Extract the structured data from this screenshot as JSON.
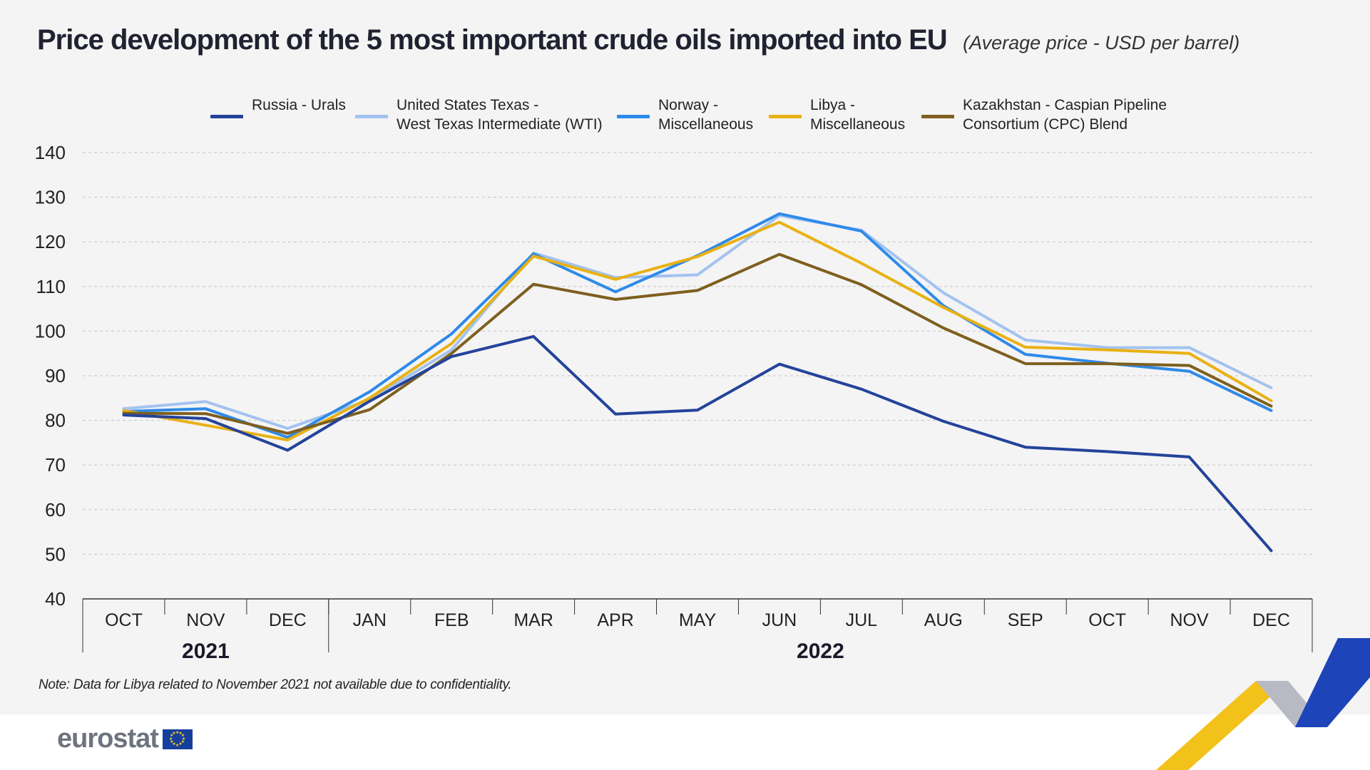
{
  "header": {
    "title": "Price development of the 5 most important crude oils imported into EU",
    "subtitle": "(Average price - USD per barrel)"
  },
  "legend": [
    {
      "label": "Russia - Urals",
      "color": "#24439a"
    },
    {
      "label": "United States Texas -\nWest Texas Intermediate (WTI)",
      "color": "#a3c3ef"
    },
    {
      "label": "Norway -\nMiscellaneous",
      "color": "#2f8ae8"
    },
    {
      "label": "Libya -\nMiscellaneous",
      "color": "#e8b114"
    },
    {
      "label": "Kazakhstan - Caspian Pipeline\nConsortium (CPC) Blend",
      "color": "#7e5f1e"
    }
  ],
  "chart_data": {
    "type": "line",
    "title": "Price development of the 5 most important crude oils imported into EU",
    "subtitle": "(Average price - USD per barrel)",
    "categories": [
      "OCT",
      "NOV",
      "DEC",
      "JAN",
      "FEB",
      "MAR",
      "APR",
      "MAY",
      "JUN",
      "JUL",
      "AUG",
      "SEP",
      "OCT",
      "NOV",
      "DEC"
    ],
    "year_groups": [
      {
        "label": "2021",
        "count": 3
      },
      {
        "label": "2022",
        "count": 12
      }
    ],
    "ylim": [
      40,
      140
    ],
    "yticks": [
      40,
      50,
      60,
      70,
      80,
      90,
      100,
      110,
      120,
      130,
      140
    ],
    "grid": true,
    "legend_position": "top",
    "series": [
      {
        "name": "Russia - Urals",
        "color": "#24439a",
        "values": [
          81.2,
          80.4,
          73.3,
          84.3,
          94.3,
          98.8,
          81.4,
          82.3,
          92.6,
          87.0,
          79.8,
          74.0,
          73.0,
          71.8,
          50.8
        ]
      },
      {
        "name": "United States Texas - West Texas Intermediate (WTI)",
        "color": "#a3c3ef",
        "values": [
          82.6,
          84.2,
          78.2,
          84.6,
          95.8,
          117.5,
          112.0,
          112.6,
          125.9,
          122.6,
          108.6,
          98.0,
          96.3,
          96.3,
          87.3
        ]
      },
      {
        "name": "Norway - Miscellaneous",
        "color": "#2f8ae8",
        "values": [
          82.0,
          82.6,
          76.2,
          86.4,
          99.4,
          117.3,
          108.8,
          116.9,
          126.3,
          122.4,
          105.7,
          94.8,
          92.8,
          91.0,
          82.2
        ]
      },
      {
        "name": "Libya - Miscellaneous",
        "color": "#e8b114",
        "values": [
          82.2,
          null,
          75.6,
          85.0,
          97.2,
          116.8,
          111.6,
          116.7,
          124.4,
          115.2,
          105.3,
          96.4,
          95.8,
          95.0,
          84.4
        ]
      },
      {
        "name": "Kazakhstan - Caspian Pipeline Consortium (CPC) Blend",
        "color": "#7e5f1e",
        "values": [
          81.6,
          81.5,
          77.1,
          82.4,
          95.0,
          110.5,
          107.1,
          109.1,
          117.2,
          110.4,
          100.7,
          92.7,
          92.7,
          92.3,
          83.2
        ]
      }
    ]
  },
  "note": "Note: Data for Libya related to November 2021 not available due to confidentiality.",
  "footer": {
    "logo_text": "eurostat"
  }
}
